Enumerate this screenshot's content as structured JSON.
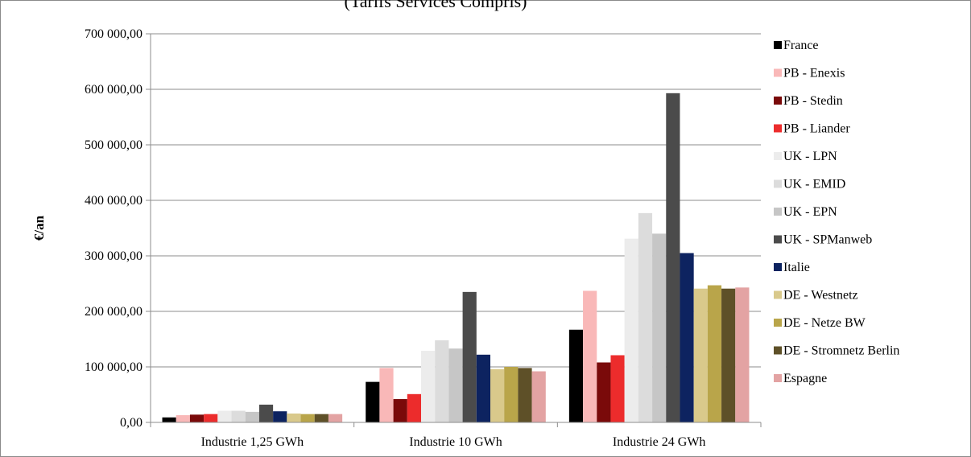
{
  "chart_data": {
    "type": "bar",
    "title": "(Tarifs Services Compris)",
    "xlabel": "",
    "ylabel": "€/an",
    "ylim": [
      0,
      700000
    ],
    "yticks": [
      0,
      100000,
      200000,
      300000,
      400000,
      500000,
      600000,
      700000
    ],
    "ytick_labels": [
      "0,00",
      "100 000,00",
      "200 000,00",
      "300 000,00",
      "400 000,00",
      "500 000,00",
      "600 000,00",
      "700 000,00"
    ],
    "grid": true,
    "legend_position": "right",
    "categories": [
      "Industrie 1,25 GWh",
      "Industrie 10 GWh",
      "Industrie 24 GWh"
    ],
    "series": [
      {
        "name": "France",
        "color": "#000000",
        "values": [
          9000,
          73000,
          167000
        ]
      },
      {
        "name": "PB - Enexis",
        "color": "#f9b8b8",
        "values": [
          13000,
          98000,
          237000
        ]
      },
      {
        "name": "PB - Stedin",
        "color": "#7a0a0a",
        "values": [
          14000,
          42000,
          108000
        ]
      },
      {
        "name": "PB - Liander",
        "color": "#ec2c2c",
        "values": [
          15000,
          51000,
          121000
        ]
      },
      {
        "name": "UK - LPN",
        "color": "#ececec",
        "values": [
          21000,
          129000,
          331000
        ]
      },
      {
        "name": "UK - EMID",
        "color": "#dcdcdc",
        "values": [
          21000,
          148000,
          377000
        ]
      },
      {
        "name": "UK - EPN",
        "color": "#c6c6c6",
        "values": [
          19000,
          133000,
          340000
        ]
      },
      {
        "name": "UK - SPManweb",
        "color": "#4b4b4b",
        "values": [
          32000,
          235000,
          593000
        ]
      },
      {
        "name": "Italie",
        "color": "#0d2360",
        "values": [
          20000,
          122000,
          305000
        ]
      },
      {
        "name": "DE - Westnetz",
        "color": "#d9c98b",
        "values": [
          16000,
          96000,
          241000
        ]
      },
      {
        "name": "DE - Netze BW",
        "color": "#b9a54a",
        "values": [
          15000,
          100000,
          247000
        ]
      },
      {
        "name": "DE - Stromnetz Berlin",
        "color": "#5e5028",
        "values": [
          15000,
          98000,
          241000
        ]
      },
      {
        "name": "Espagne",
        "color": "#e3a3a3",
        "values": [
          15000,
          92000,
          243000
        ]
      }
    ]
  }
}
